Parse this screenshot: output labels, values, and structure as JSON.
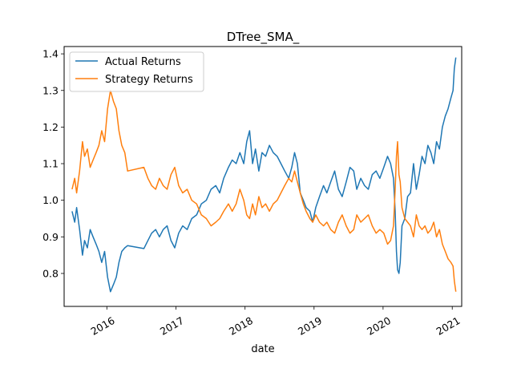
{
  "chart_data": {
    "type": "line",
    "title": "DTree_SMA_",
    "xlabel": "date",
    "ylabel": "",
    "xlim": [
      "2015-05-20",
      "2021-02-20"
    ],
    "ylim": [
      0.71,
      1.42
    ],
    "x_ticks": [
      "2016-01-01",
      "2017-01-01",
      "2018-01-01",
      "2019-01-01",
      "2020-01-01",
      "2021-01-01"
    ],
    "x_tick_labels": [
      "2016",
      "2017",
      "2018",
      "2019",
      "2020",
      "2021"
    ],
    "y_ticks": [
      0.8,
      0.9,
      1.0,
      1.1,
      1.2,
      1.3,
      1.4
    ],
    "y_tick_labels": [
      "0.8",
      "0.9",
      "1.0",
      "1.1",
      "1.2",
      "1.3",
      "1.4"
    ],
    "legend_position": "top-left",
    "grid": false,
    "series": [
      {
        "name": "Actual Returns",
        "color": "#1f77b4",
        "points": [
          [
            "2015-07-01",
            0.97
          ],
          [
            "2015-07-15",
            0.94
          ],
          [
            "2015-07-25",
            0.98
          ],
          [
            "2015-08-10",
            0.92
          ],
          [
            "2015-08-25",
            0.85
          ],
          [
            "2015-09-05",
            0.89
          ],
          [
            "2015-09-20",
            0.87
          ],
          [
            "2015-10-05",
            0.92
          ],
          [
            "2015-10-20",
            0.9
          ],
          [
            "2015-11-05",
            0.88
          ],
          [
            "2015-11-20",
            0.86
          ],
          [
            "2015-12-05",
            0.83
          ],
          [
            "2015-12-20",
            0.86
          ],
          [
            "2016-01-05",
            0.79
          ],
          [
            "2016-01-20",
            0.75
          ],
          [
            "2016-02-05",
            0.77
          ],
          [
            "2016-02-20",
            0.79
          ],
          [
            "2016-03-05",
            0.83
          ],
          [
            "2016-03-20",
            0.86
          ],
          [
            "2016-04-05",
            0.87
          ],
          [
            "2016-04-20",
            0.876
          ],
          [
            "2016-07-15",
            0.868
          ],
          [
            "2016-08-05",
            0.89
          ],
          [
            "2016-08-25",
            0.91
          ],
          [
            "2016-09-15",
            0.92
          ],
          [
            "2016-10-05",
            0.9
          ],
          [
            "2016-10-25",
            0.92
          ],
          [
            "2016-11-15",
            0.93
          ],
          [
            "2016-12-05",
            0.89
          ],
          [
            "2016-12-25",
            0.87
          ],
          [
            "2017-01-15",
            0.91
          ],
          [
            "2017-02-05",
            0.93
          ],
          [
            "2017-03-01",
            0.92
          ],
          [
            "2017-03-25",
            0.95
          ],
          [
            "2017-04-20",
            0.96
          ],
          [
            "2017-05-15",
            0.99
          ],
          [
            "2017-06-10",
            1.0
          ],
          [
            "2017-07-05",
            1.03
          ],
          [
            "2017-07-30",
            1.04
          ],
          [
            "2017-08-20",
            1.02
          ],
          [
            "2017-09-10",
            1.06
          ],
          [
            "2017-10-05",
            1.09
          ],
          [
            "2017-10-25",
            1.11
          ],
          [
            "2017-11-15",
            1.1
          ],
          [
            "2017-12-05",
            1.13
          ],
          [
            "2017-12-25",
            1.1
          ],
          [
            "2018-01-10",
            1.16
          ],
          [
            "2018-01-25",
            1.19
          ],
          [
            "2018-02-10",
            1.1
          ],
          [
            "2018-02-25",
            1.14
          ],
          [
            "2018-03-15",
            1.08
          ],
          [
            "2018-04-01",
            1.13
          ],
          [
            "2018-04-20",
            1.12
          ],
          [
            "2018-05-10",
            1.15
          ],
          [
            "2018-05-30",
            1.13
          ],
          [
            "2018-06-20",
            1.12
          ],
          [
            "2018-07-10",
            1.1
          ],
          [
            "2018-07-30",
            1.08
          ],
          [
            "2018-08-20",
            1.06
          ],
          [
            "2018-09-05",
            1.09
          ],
          [
            "2018-09-20",
            1.13
          ],
          [
            "2018-10-05",
            1.1
          ],
          [
            "2018-10-20",
            1.02
          ],
          [
            "2018-11-05",
            1.0
          ],
          [
            "2018-11-20",
            0.98
          ],
          [
            "2018-12-10",
            0.97
          ],
          [
            "2018-12-25",
            0.94
          ],
          [
            "2019-01-10",
            0.98
          ],
          [
            "2019-01-30",
            1.01
          ],
          [
            "2019-02-20",
            1.04
          ],
          [
            "2019-03-10",
            1.02
          ],
          [
            "2019-03-30",
            1.05
          ],
          [
            "2019-04-20",
            1.08
          ],
          [
            "2019-05-10",
            1.03
          ],
          [
            "2019-05-30",
            1.01
          ],
          [
            "2019-06-20",
            1.05
          ],
          [
            "2019-07-10",
            1.09
          ],
          [
            "2019-07-30",
            1.08
          ],
          [
            "2019-08-15",
            1.03
          ],
          [
            "2019-09-05",
            1.06
          ],
          [
            "2019-09-25",
            1.04
          ],
          [
            "2019-10-15",
            1.03
          ],
          [
            "2019-11-05",
            1.07
          ],
          [
            "2019-11-25",
            1.08
          ],
          [
            "2019-12-15",
            1.06
          ],
          [
            "2020-01-05",
            1.09
          ],
          [
            "2020-01-25",
            1.12
          ],
          [
            "2020-02-10",
            1.1
          ],
          [
            "2020-02-25",
            1.06
          ],
          [
            "2020-03-05",
            0.97
          ],
          [
            "2020-03-12",
            0.86
          ],
          [
            "2020-03-18",
            0.81
          ],
          [
            "2020-03-25",
            0.8
          ],
          [
            "2020-04-01",
            0.83
          ],
          [
            "2020-04-10",
            0.93
          ],
          [
            "2020-04-25",
            0.95
          ],
          [
            "2020-05-10",
            1.01
          ],
          [
            "2020-05-25",
            1.02
          ],
          [
            "2020-06-10",
            1.1
          ],
          [
            "2020-06-25",
            1.03
          ],
          [
            "2020-07-10",
            1.07
          ],
          [
            "2020-07-25",
            1.12
          ],
          [
            "2020-08-10",
            1.1
          ],
          [
            "2020-08-25",
            1.15
          ],
          [
            "2020-09-10",
            1.13
          ],
          [
            "2020-09-25",
            1.1
          ],
          [
            "2020-10-10",
            1.16
          ],
          [
            "2020-10-25",
            1.14
          ],
          [
            "2020-11-10",
            1.2
          ],
          [
            "2020-11-25",
            1.23
          ],
          [
            "2020-12-10",
            1.25
          ],
          [
            "2020-12-25",
            1.28
          ],
          [
            "2021-01-05",
            1.3
          ],
          [
            "2021-01-12",
            1.36
          ],
          [
            "2021-01-20",
            1.39
          ]
        ]
      },
      {
        "name": "Strategy Returns",
        "color": "#ff7f0e",
        "points": [
          [
            "2015-07-01",
            1.03
          ],
          [
            "2015-07-15",
            1.06
          ],
          [
            "2015-07-25",
            1.02
          ],
          [
            "2015-08-10",
            1.08
          ],
          [
            "2015-08-25",
            1.16
          ],
          [
            "2015-09-05",
            1.12
          ],
          [
            "2015-09-20",
            1.14
          ],
          [
            "2015-10-05",
            1.09
          ],
          [
            "2015-10-20",
            1.11
          ],
          [
            "2015-11-05",
            1.13
          ],
          [
            "2015-11-20",
            1.15
          ],
          [
            "2015-12-05",
            1.19
          ],
          [
            "2015-12-20",
            1.16
          ],
          [
            "2016-01-05",
            1.25
          ],
          [
            "2016-01-20",
            1.3
          ],
          [
            "2016-02-05",
            1.27
          ],
          [
            "2016-02-20",
            1.25
          ],
          [
            "2016-03-05",
            1.19
          ],
          [
            "2016-03-20",
            1.15
          ],
          [
            "2016-04-05",
            1.13
          ],
          [
            "2016-04-20",
            1.08
          ],
          [
            "2016-07-15",
            1.09
          ],
          [
            "2016-08-05",
            1.06
          ],
          [
            "2016-08-25",
            1.04
          ],
          [
            "2016-09-15",
            1.03
          ],
          [
            "2016-10-05",
            1.06
          ],
          [
            "2016-10-25",
            1.04
          ],
          [
            "2016-11-15",
            1.03
          ],
          [
            "2016-12-05",
            1.07
          ],
          [
            "2016-12-25",
            1.09
          ],
          [
            "2017-01-15",
            1.04
          ],
          [
            "2017-02-05",
            1.02
          ],
          [
            "2017-03-01",
            1.03
          ],
          [
            "2017-03-25",
            1.0
          ],
          [
            "2017-04-20",
            0.99
          ],
          [
            "2017-05-15",
            0.96
          ],
          [
            "2017-06-10",
            0.95
          ],
          [
            "2017-07-05",
            0.93
          ],
          [
            "2017-07-30",
            0.94
          ],
          [
            "2017-08-20",
            0.95
          ],
          [
            "2017-09-10",
            0.97
          ],
          [
            "2017-10-05",
            0.99
          ],
          [
            "2017-10-25",
            0.97
          ],
          [
            "2017-11-15",
            0.99
          ],
          [
            "2017-12-05",
            1.03
          ],
          [
            "2017-12-25",
            1.0
          ],
          [
            "2018-01-10",
            0.96
          ],
          [
            "2018-01-25",
            0.95
          ],
          [
            "2018-02-10",
            0.99
          ],
          [
            "2018-02-25",
            0.96
          ],
          [
            "2018-03-15",
            1.01
          ],
          [
            "2018-04-01",
            0.98
          ],
          [
            "2018-04-20",
            0.99
          ],
          [
            "2018-05-10",
            0.97
          ],
          [
            "2018-05-30",
            0.99
          ],
          [
            "2018-06-20",
            1.0
          ],
          [
            "2018-07-10",
            1.02
          ],
          [
            "2018-07-30",
            1.04
          ],
          [
            "2018-08-20",
            1.06
          ],
          [
            "2018-09-05",
            1.05
          ],
          [
            "2018-09-20",
            1.08
          ],
          [
            "2018-10-05",
            1.05
          ],
          [
            "2018-10-20",
            1.02
          ],
          [
            "2018-11-05",
            0.99
          ],
          [
            "2018-11-20",
            0.97
          ],
          [
            "2018-12-10",
            0.95
          ],
          [
            "2018-12-25",
            0.94
          ],
          [
            "2019-01-10",
            0.96
          ],
          [
            "2019-01-30",
            0.94
          ],
          [
            "2019-02-20",
            0.93
          ],
          [
            "2019-03-10",
            0.94
          ],
          [
            "2019-03-30",
            0.92
          ],
          [
            "2019-04-20",
            0.91
          ],
          [
            "2019-05-10",
            0.94
          ],
          [
            "2019-05-30",
            0.96
          ],
          [
            "2019-06-20",
            0.93
          ],
          [
            "2019-07-10",
            0.91
          ],
          [
            "2019-07-30",
            0.92
          ],
          [
            "2019-08-15",
            0.96
          ],
          [
            "2019-09-05",
            0.94
          ],
          [
            "2019-09-25",
            0.95
          ],
          [
            "2019-10-15",
            0.96
          ],
          [
            "2019-11-05",
            0.93
          ],
          [
            "2019-11-25",
            0.91
          ],
          [
            "2019-12-15",
            0.92
          ],
          [
            "2020-01-05",
            0.91
          ],
          [
            "2020-01-25",
            0.88
          ],
          [
            "2020-02-10",
            0.89
          ],
          [
            "2020-02-25",
            0.93
          ],
          [
            "2020-03-05",
            1.03
          ],
          [
            "2020-03-12",
            1.12
          ],
          [
            "2020-03-18",
            1.16
          ],
          [
            "2020-03-25",
            1.07
          ],
          [
            "2020-04-01",
            1.05
          ],
          [
            "2020-04-10",
            0.98
          ],
          [
            "2020-04-25",
            0.95
          ],
          [
            "2020-05-10",
            0.94
          ],
          [
            "2020-05-25",
            0.93
          ],
          [
            "2020-06-10",
            0.9
          ],
          [
            "2020-06-25",
            0.96
          ],
          [
            "2020-07-10",
            0.93
          ],
          [
            "2020-07-25",
            0.92
          ],
          [
            "2020-08-10",
            0.93
          ],
          [
            "2020-08-25",
            0.91
          ],
          [
            "2020-09-10",
            0.92
          ],
          [
            "2020-09-25",
            0.94
          ],
          [
            "2020-10-10",
            0.9
          ],
          [
            "2020-10-25",
            0.92
          ],
          [
            "2020-11-10",
            0.88
          ],
          [
            "2020-11-25",
            0.86
          ],
          [
            "2020-12-10",
            0.84
          ],
          [
            "2020-12-25",
            0.83
          ],
          [
            "2021-01-05",
            0.82
          ],
          [
            "2021-01-12",
            0.78
          ],
          [
            "2021-01-20",
            0.75
          ]
        ]
      }
    ]
  }
}
